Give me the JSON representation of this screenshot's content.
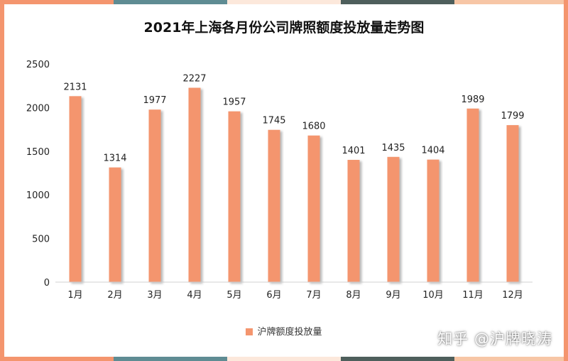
{
  "colors": {
    "bar": "#F4956E",
    "frame": [
      "#F4956E",
      "#5F8C93",
      "#FCE8DB",
      "#4E5F5C",
      "#F7C6A6"
    ],
    "side": "#F4956E",
    "axis": "#d0d0d0",
    "text": "#222222"
  },
  "watermark": "知乎 @沪牌晓涛",
  "chart_data": {
    "type": "bar",
    "title": "2021年上海各月份公司牌照额度投放量走势图",
    "categories": [
      "1月",
      "2月",
      "3月",
      "4月",
      "5月",
      "6月",
      "7月",
      "8月",
      "9月",
      "10月",
      "11月",
      "12月"
    ],
    "series": [
      {
        "name": "沪牌额度投放量",
        "values": [
          2131,
          1314,
          1977,
          2227,
          1957,
          1745,
          1680,
          1401,
          1435,
          1404,
          1989,
          1799
        ]
      }
    ],
    "ylim": [
      0,
      2500
    ],
    "yticks": [
      0,
      500,
      1000,
      1500,
      2000,
      2500
    ],
    "xlabel": "",
    "ylabel": "",
    "grid": false,
    "legend": "bottom",
    "data_labels": true
  }
}
